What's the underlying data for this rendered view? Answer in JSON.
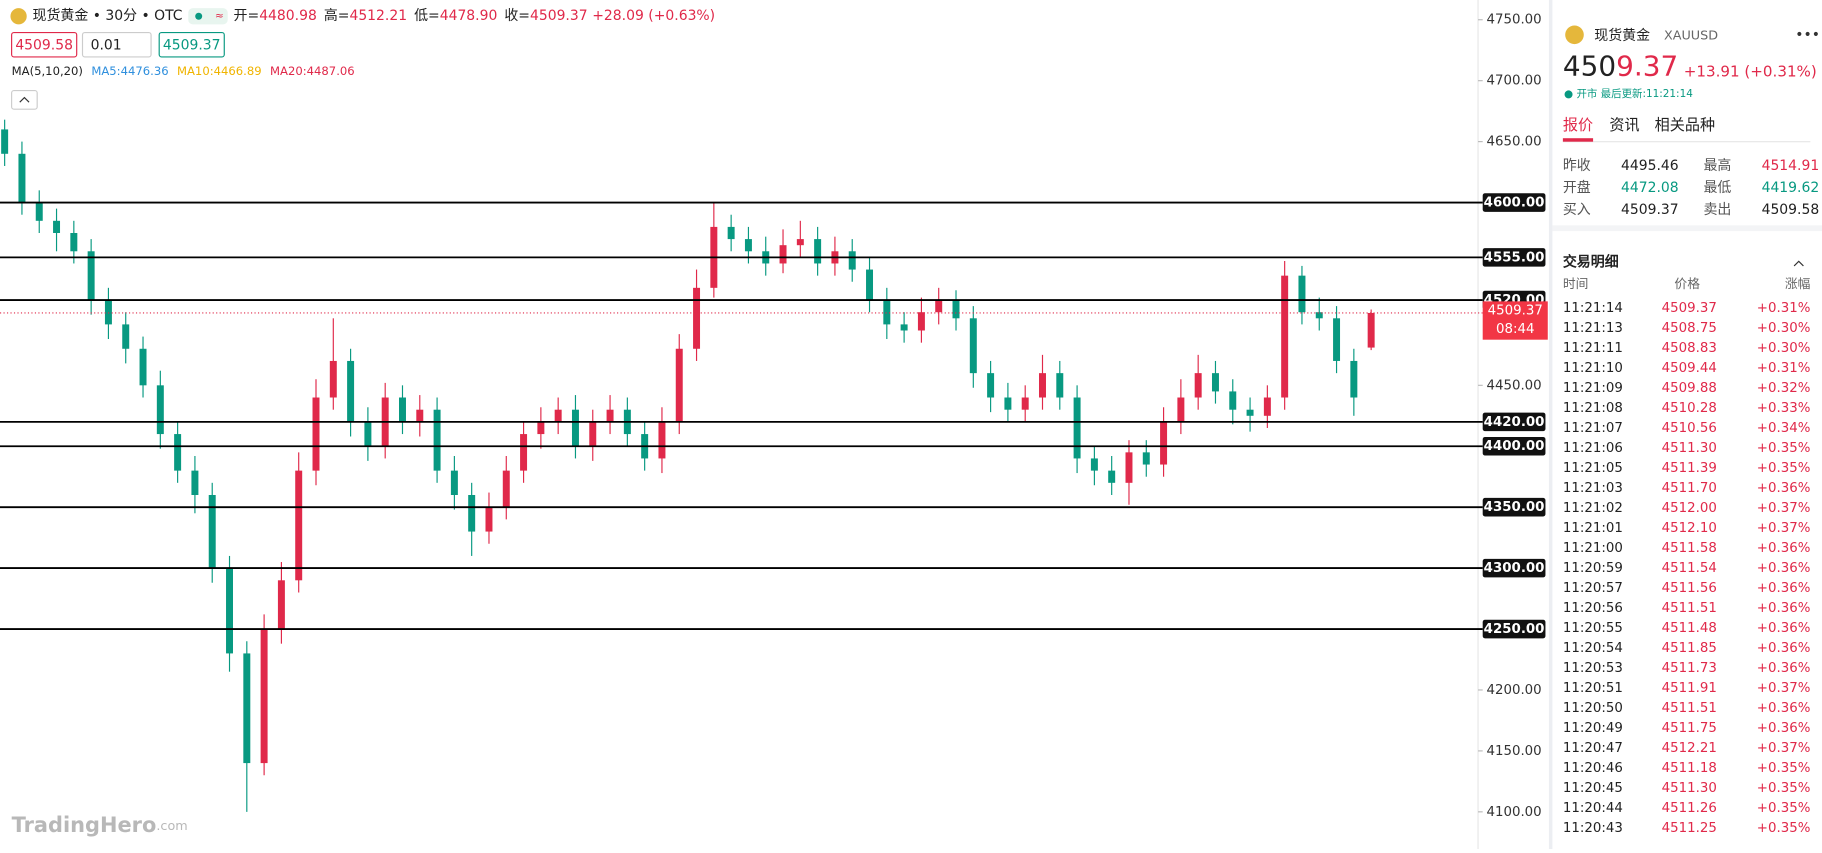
{
  "header": {
    "title": "现货黄金 • 30分 • OTC",
    "ohlc": [
      {
        "label": "开=",
        "value": "4480.98"
      },
      {
        "label": "高=",
        "value": "4512.21"
      },
      {
        "label": "低=",
        "value": "4478.90"
      },
      {
        "label": "收=",
        "value": "4509.37"
      }
    ],
    "change": "+28.09 (+0.63%)"
  },
  "order": {
    "sell": "4509.58",
    "qty": "0.01",
    "buy": "4509.37"
  },
  "ma": {
    "label": "MA(5,10,20)",
    "ma5": "MA5:4476.36",
    "ma10": "MA10:4466.89",
    "ma20": "MA20:4487.06"
  },
  "watermark": {
    "brand": "TradingHero",
    "suffix": ".com"
  },
  "chart_data": {
    "type": "candlestick",
    "up_color": "#e0294a",
    "down_color": "#089981",
    "ylim": [
      4100,
      4750
    ],
    "yticks": [
      {
        "value": 4750,
        "label": "4750.00"
      },
      {
        "value": 4700,
        "label": "4700.00"
      },
      {
        "value": 4650,
        "label": "4650.00"
      },
      {
        "value": 4450,
        "label": "4450.00"
      },
      {
        "value": 4200,
        "label": "4200.00"
      },
      {
        "value": 4150,
        "label": "4150.00"
      },
      {
        "value": 4100,
        "label": "4100.00"
      }
    ],
    "levels": [
      {
        "value": 4600,
        "label": "4600.00"
      },
      {
        "value": 4555,
        "label": "4555.00"
      },
      {
        "value": 4520,
        "label": "4520.00"
      },
      {
        "value": 4420,
        "label": "4420.00"
      },
      {
        "value": 4400,
        "label": "4400.00"
      },
      {
        "value": 4350,
        "label": "4350.00"
      },
      {
        "value": 4300,
        "label": "4300.00"
      },
      {
        "value": 4250,
        "label": "4250.00"
      }
    ],
    "current": {
      "value": 4509.37,
      "label": "4509.37",
      "countdown": "08:44"
    },
    "candles": {
      "open": [
        4660,
        4640,
        4600,
        4585,
        4575,
        4560,
        4520,
        4500,
        4480,
        4450,
        4410,
        4380,
        4360,
        4300,
        4230,
        4140,
        4250,
        4290,
        4380,
        4440,
        4470,
        4420,
        4400,
        4440,
        4420,
        4430,
        4380,
        4360,
        4330,
        4350,
        4380,
        4410,
        4420,
        4430,
        4400,
        4420,
        4430,
        4410,
        4390,
        4420,
        4480,
        4530,
        4580,
        4570,
        4560,
        4550,
        4565,
        4570,
        4550,
        4560,
        4545,
        4520,
        4500,
        4495,
        4510,
        4520,
        4505,
        4460,
        4440,
        4430,
        4440,
        4460,
        4440,
        4390,
        4380,
        4370,
        4395,
        4385,
        4420,
        4440,
        4460,
        4445,
        4430,
        4425,
        4440,
        4540,
        4510,
        4505,
        4470,
        4480.98
      ],
      "high": [
        4668,
        4650,
        4610,
        4595,
        4585,
        4570,
        4530,
        4510,
        4490,
        4462,
        4420,
        4392,
        4370,
        4310,
        4240,
        4262,
        4305,
        4395,
        4455,
        4505,
        4480,
        4432,
        4452,
        4450,
        4442,
        4440,
        4392,
        4370,
        4362,
        4392,
        4420,
        4432,
        4440,
        4442,
        4430,
        4442,
        4440,
        4420,
        4432,
        4492,
        4545,
        4600,
        4590,
        4580,
        4572,
        4578,
        4585,
        4580,
        4572,
        4570,
        4555,
        4530,
        4510,
        4522,
        4530,
        4528,
        4515,
        4470,
        4452,
        4450,
        4475,
        4470,
        4450,
        4400,
        4392,
        4405,
        4405,
        4432,
        4455,
        4475,
        4470,
        4455,
        4440,
        4450,
        4552,
        4548,
        4522,
        4515,
        4480,
        4512.21
      ],
      "low": [
        4630,
        4590,
        4575,
        4560,
        4550,
        4508,
        4488,
        4468,
        4440,
        4398,
        4370,
        4345,
        4288,
        4215,
        4100,
        4130,
        4238,
        4280,
        4368,
        4430,
        4408,
        4388,
        4390,
        4410,
        4408,
        4370,
        4348,
        4310,
        4320,
        4340,
        4370,
        4398,
        4410,
        4390,
        4388,
        4410,
        4400,
        4380,
        4378,
        4410,
        4470,
        4522,
        4560,
        4550,
        4540,
        4542,
        4555,
        4540,
        4540,
        4535,
        4510,
        4488,
        4485,
        4485,
        4500,
        4495,
        4448,
        4428,
        4420,
        4420,
        4430,
        4430,
        4378,
        4368,
        4360,
        4352,
        4375,
        4375,
        4410,
        4430,
        4435,
        4418,
        4412,
        4415,
        4430,
        4500,
        4495,
        4460,
        4425,
        4478.9
      ],
      "close": [
        4640,
        4600,
        4585,
        4575,
        4560,
        4520,
        4500,
        4480,
        4450,
        4410,
        4380,
        4360,
        4300,
        4230,
        4140,
        4250,
        4290,
        4380,
        4440,
        4470,
        4420,
        4400,
        4440,
        4420,
        4430,
        4380,
        4360,
        4330,
        4350,
        4380,
        4410,
        4420,
        4430,
        4400,
        4420,
        4430,
        4410,
        4390,
        4420,
        4480,
        4530,
        4580,
        4570,
        4560,
        4550,
        4565,
        4570,
        4550,
        4560,
        4545,
        4520,
        4500,
        4495,
        4510,
        4520,
        4505,
        4460,
        4440,
        4430,
        4440,
        4460,
        4440,
        4390,
        4380,
        4370,
        4395,
        4385,
        4420,
        4440,
        4460,
        4445,
        4430,
        4425,
        4440,
        4540,
        4510,
        4505,
        4470,
        4440,
        4509.37
      ]
    }
  },
  "panel": {
    "name": "现货黄金",
    "symbol": "XAUUSD",
    "price_head": "450",
    "price_tail": "9.37",
    "change": "+13.91 (+0.31%)",
    "status": "开市",
    "updated": "最后更新:11:21:14",
    "tabs": [
      "报价",
      "资讯",
      "相关品种"
    ],
    "stats": [
      [
        {
          "label": "昨收",
          "value": "4495.46"
        },
        {
          "label": "最高",
          "value": "4514.91"
        }
      ],
      [
        {
          "label": "开盘",
          "value": "4472.08"
        },
        {
          "label": "最低",
          "value": "4419.62"
        }
      ],
      [
        {
          "label": "买入",
          "value": "4509.37"
        },
        {
          "label": "卖出",
          "value": "4509.58"
        }
      ]
    ],
    "trades_title": "交易明细",
    "columns": [
      "时间",
      "价格",
      "涨幅"
    ],
    "trades": [
      [
        "11:21:14",
        "4509.37",
        "+0.31%"
      ],
      [
        "11:21:13",
        "4508.75",
        "+0.30%"
      ],
      [
        "11:21:11",
        "4508.83",
        "+0.30%"
      ],
      [
        "11:21:10",
        "4509.44",
        "+0.31%"
      ],
      [
        "11:21:09",
        "4509.88",
        "+0.32%"
      ],
      [
        "11:21:08",
        "4510.28",
        "+0.33%"
      ],
      [
        "11:21:07",
        "4510.56",
        "+0.34%"
      ],
      [
        "11:21:06",
        "4511.30",
        "+0.35%"
      ],
      [
        "11:21:05",
        "4511.39",
        "+0.35%"
      ],
      [
        "11:21:03",
        "4511.70",
        "+0.36%"
      ],
      [
        "11:21:02",
        "4512.00",
        "+0.37%"
      ],
      [
        "11:21:01",
        "4512.10",
        "+0.37%"
      ],
      [
        "11:21:00",
        "4511.58",
        "+0.36%"
      ],
      [
        "11:20:59",
        "4511.54",
        "+0.36%"
      ],
      [
        "11:20:57",
        "4511.56",
        "+0.36%"
      ],
      [
        "11:20:56",
        "4511.51",
        "+0.36%"
      ],
      [
        "11:20:55",
        "4511.48",
        "+0.36%"
      ],
      [
        "11:20:54",
        "4511.85",
        "+0.36%"
      ],
      [
        "11:20:53",
        "4511.73",
        "+0.36%"
      ],
      [
        "11:20:51",
        "4511.91",
        "+0.37%"
      ],
      [
        "11:20:50",
        "4511.51",
        "+0.36%"
      ],
      [
        "11:20:49",
        "4511.75",
        "+0.36%"
      ],
      [
        "11:20:47",
        "4512.21",
        "+0.37%"
      ],
      [
        "11:20:46",
        "4511.18",
        "+0.35%"
      ],
      [
        "11:20:45",
        "4511.30",
        "+0.35%"
      ],
      [
        "11:20:44",
        "4511.26",
        "+0.35%"
      ],
      [
        "11:20:43",
        "4511.25",
        "+0.35%"
      ]
    ]
  }
}
